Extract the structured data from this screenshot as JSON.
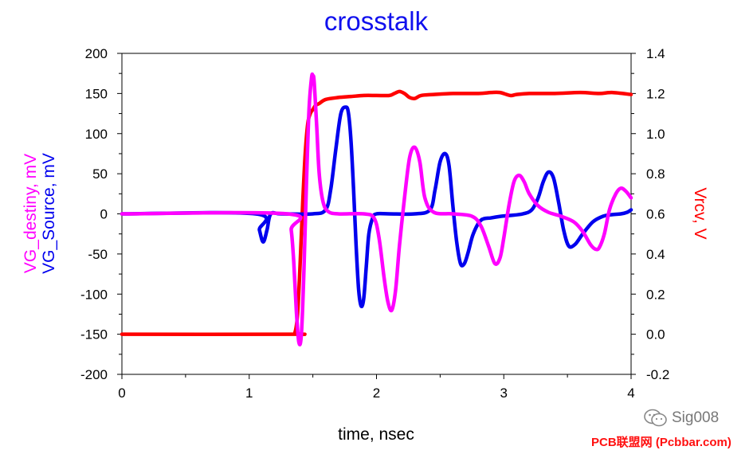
{
  "chart_data": {
    "type": "line",
    "title": "crosstalk",
    "xlabel": "time, nsec",
    "ylabel_left": [
      "VG_destiny, mV",
      "VG_Source, mV"
    ],
    "ylabel_right": "Vrcv, V",
    "xlim": [
      0,
      4
    ],
    "ylim_left": [
      -200,
      200
    ],
    "ylim_right": [
      -0.2,
      1.4
    ],
    "x_ticks": [
      "0",
      "1",
      "2",
      "3",
      "4"
    ],
    "y_left_ticks": [
      "200",
      "150",
      "100",
      "50",
      "0",
      "-50",
      "-100",
      "-150",
      "-200"
    ],
    "y_right_ticks": [
      "1.4",
      "1.2",
      "1.0",
      "0.8",
      "0.6",
      "0.4",
      "0.2",
      "0.0",
      "-0.2"
    ],
    "grid": false,
    "colors": {
      "title": "#1010ee",
      "VG_destiny": "#ff00ff",
      "VG_Source": "#0000ee",
      "Vrcv": "#ff0000"
    },
    "series": [
      {
        "name": "VG_Source",
        "axis": "left",
        "x": [
          0,
          1.05,
          1.08,
          1.11,
          1.14,
          1.17,
          1.25,
          1.5,
          1.6,
          1.64,
          1.68,
          1.72,
          1.76,
          1.78,
          1.8,
          1.82,
          1.84,
          1.86,
          1.88,
          1.9,
          1.92,
          1.94,
          1.97,
          2.0,
          2.1,
          2.3,
          2.42,
          2.46,
          2.5,
          2.54,
          2.57,
          2.6,
          2.63,
          2.66,
          2.69,
          2.72,
          2.76,
          2.82,
          2.9,
          2.98,
          3.05,
          3.15,
          3.22,
          3.27,
          3.31,
          3.35,
          3.39,
          3.43,
          3.47,
          3.51,
          3.56,
          3.62,
          3.7,
          3.78,
          3.85,
          3.92,
          3.97,
          4.0
        ],
        "values": [
          0,
          0,
          -20,
          -35,
          -20,
          0,
          0,
          0,
          5,
          30,
          80,
          125,
          133,
          125,
          90,
          30,
          -40,
          -95,
          -115,
          -105,
          -65,
          -25,
          -5,
          0,
          0,
          0,
          5,
          30,
          65,
          75,
          60,
          10,
          -35,
          -62,
          -62,
          -48,
          -25,
          -8,
          -5,
          -3,
          -2,
          0,
          5,
          20,
          40,
          52,
          45,
          15,
          -20,
          -40,
          -38,
          -25,
          -10,
          -3,
          -1,
          0,
          2,
          5
        ]
      },
      {
        "name": "VG_destiny",
        "axis": "left",
        "x": [
          0,
          1.3,
          1.33,
          1.35,
          1.37,
          1.39,
          1.41,
          1.43,
          1.45,
          1.47,
          1.49,
          1.5,
          1.51,
          1.53,
          1.55,
          1.58,
          1.62,
          1.7,
          1.9,
          1.98,
          2.02,
          2.06,
          2.09,
          2.12,
          2.15,
          2.18,
          2.22,
          2.26,
          2.3,
          2.34,
          2.38,
          2.45,
          2.6,
          2.75,
          2.82,
          2.88,
          2.93,
          2.97,
          3.0,
          3.04,
          3.08,
          3.12,
          3.16,
          3.2,
          3.27,
          3.35,
          3.45,
          3.55,
          3.62,
          3.68,
          3.72,
          3.75,
          3.79,
          3.83,
          3.88,
          3.92,
          3.96,
          4.0
        ],
        "values": [
          0,
          0,
          -20,
          -60,
          -120,
          -160,
          -150,
          -70,
          40,
          130,
          170,
          172,
          165,
          110,
          50,
          15,
          3,
          0,
          0,
          -5,
          -30,
          -80,
          -110,
          -120,
          -95,
          -40,
          20,
          70,
          83,
          65,
          20,
          2,
          0,
          -3,
          -15,
          -40,
          -62,
          -55,
          -30,
          10,
          40,
          48,
          40,
          25,
          10,
          2,
          -3,
          -10,
          -22,
          -38,
          -44,
          -42,
          -25,
          5,
          25,
          32,
          28,
          20
        ]
      },
      {
        "name": "Vrcv",
        "axis": "right",
        "x": [
          0,
          1.33,
          1.36,
          1.38,
          1.4,
          1.42,
          1.44,
          1.46,
          1.48,
          1.5,
          1.52,
          1.55,
          1.6,
          1.7,
          1.8,
          1.9,
          2.0,
          2.1,
          2.14,
          2.18,
          2.22,
          2.26,
          2.3,
          2.35,
          2.45,
          2.6,
          2.8,
          2.9,
          2.97,
          3.05,
          3.1,
          3.2,
          3.4,
          3.6,
          3.75,
          3.85,
          4.0
        ],
        "values": [
          0,
          0,
          0.01,
          0.1,
          0.35,
          0.65,
          0.9,
          1.05,
          1.1,
          1.12,
          1.14,
          1.15,
          1.17,
          1.18,
          1.185,
          1.19,
          1.19,
          1.19,
          1.2,
          1.21,
          1.2,
          1.18,
          1.175,
          1.19,
          1.195,
          1.2,
          1.2,
          1.205,
          1.205,
          1.19,
          1.195,
          1.2,
          1.2,
          1.205,
          1.2,
          1.205,
          1.195
        ]
      }
    ]
  },
  "watermark": {
    "handle": "Sig008",
    "site": "PCB联盟网 (Pcbbar.com)",
    "logo_icon": "wechat-icon"
  }
}
